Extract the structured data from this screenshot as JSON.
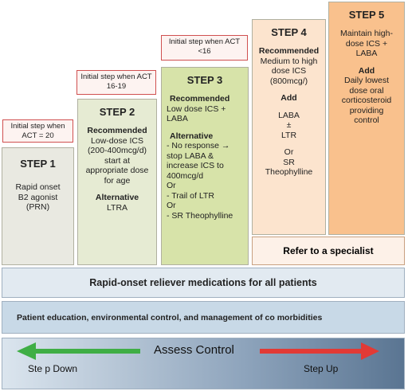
{
  "steps": [
    {
      "initial": "Initial step when ACT = 20",
      "title": "STEP 1",
      "lines": [
        {
          "text": "Rapid onset"
        },
        {
          "text": "B2 agonist"
        },
        {
          "text": "(PRN)"
        }
      ]
    },
    {
      "initial": "Initial step when ACT 16-19",
      "title": "STEP 2",
      "lines": [
        {
          "text": "Recommended",
          "bold": true
        },
        {
          "text": "Low-dose ICS"
        },
        {
          "text": "(200-400mcg/d)"
        },
        {
          "text": "start at"
        },
        {
          "text": "appropriate dose"
        },
        {
          "text": "for age"
        },
        {
          "text": "Alternative",
          "bold": true,
          "gap_before": true
        },
        {
          "text": "LTRA"
        }
      ]
    },
    {
      "initial": "Initial step when ACT <16",
      "title": "STEP 3",
      "lines": [
        {
          "text": "Recommended",
          "bold": true
        },
        {
          "text": "Low dose ICS +"
        },
        {
          "text": "LABA"
        },
        {
          "text": "Alternative",
          "bold": true,
          "gap_before": true
        },
        {
          "text": "- No response →"
        },
        {
          "text": "stop LABA &"
        },
        {
          "text": "increase ICS to"
        },
        {
          "text": "400mcg/d"
        },
        {
          "text": "Or"
        },
        {
          "text": "- Trail of LTR"
        },
        {
          "text": "Or"
        },
        {
          "text": "- SR Theophylline"
        }
      ]
    },
    {
      "title": "STEP 4",
      "lines": [
        {
          "text": "Recommended",
          "bold": true
        },
        {
          "text": "Medium to high"
        },
        {
          "text": "dose ICS"
        },
        {
          "text": "(800mcg/)"
        },
        {
          "text": "Add",
          "bold": true,
          "gap_before": true
        },
        {
          "text": "LABA",
          "gap_before": true
        },
        {
          "text": "±"
        },
        {
          "text": "LTR"
        },
        {
          "text": "Or",
          "gap_before": true
        },
        {
          "text": "SR"
        },
        {
          "text": "Theophylline"
        }
      ]
    },
    {
      "title": "STEP 5",
      "lines": [
        {
          "text": "Maintain high-"
        },
        {
          "text": "dose ICS +"
        },
        {
          "text": "LABA"
        },
        {
          "text": "Add",
          "bold": true,
          "gap_before": true
        },
        {
          "text": "Daily lowest"
        },
        {
          "text": "dose oral"
        },
        {
          "text": "corticosteroid"
        },
        {
          "text": "providing"
        },
        {
          "text": "control"
        }
      ]
    }
  ],
  "specialist": "Refer to a specialist",
  "reliever": "Rapid-onset reliever medications for all patients",
  "education": "Patient education, environmental control, and management of co morbidities",
  "assess": {
    "title": "Assess Control",
    "down": "Ste p Down",
    "up": "Step Up"
  }
}
